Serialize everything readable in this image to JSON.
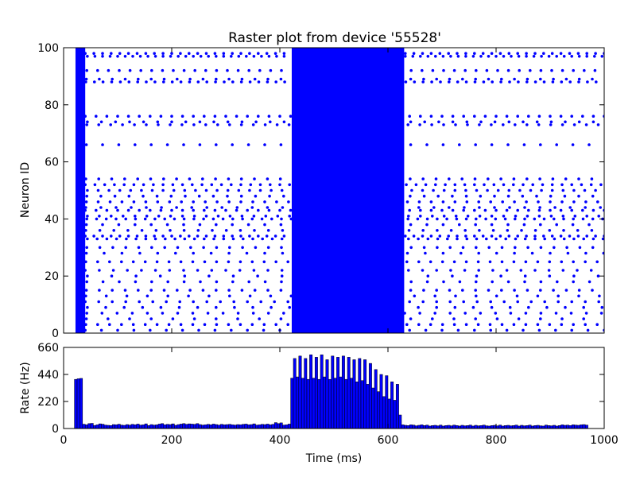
{
  "chart_data": [
    {
      "type": "scatter",
      "title": "Raster plot from device '55528'",
      "xlabel": "",
      "ylabel": "Neuron ID",
      "xlim": [
        0,
        1000
      ],
      "ylim": [
        0,
        100
      ],
      "yticks": [
        "0",
        "20",
        "40",
        "60",
        "80",
        "100"
      ],
      "marker_color": "#0000ff",
      "rows": [
        {
          "id": 1,
          "ms": 30
        },
        {
          "id": 3,
          "ms": 22
        },
        {
          "id": 5,
          "ms": 40
        },
        {
          "id": 7,
          "ms": 28
        },
        {
          "id": 9,
          "ms": 34
        },
        {
          "id": 11,
          "ms": 25
        },
        {
          "id": 13,
          "ms": 38
        },
        {
          "id": 15,
          "ms": 24
        },
        {
          "id": 18,
          "ms": 30
        },
        {
          "id": 20,
          "ms": 45
        },
        {
          "id": 22,
          "ms": 26
        },
        {
          "id": 25,
          "ms": 22
        },
        {
          "id": 28,
          "ms": 33
        },
        {
          "id": 30,
          "ms": 24
        },
        {
          "id": 33,
          "ms": 18
        },
        {
          "id": 34,
          "ms": 16
        },
        {
          "id": 36,
          "ms": 26
        },
        {
          "id": 38,
          "ms": 30
        },
        {
          "id": 40,
          "ms": 18
        },
        {
          "id": 41,
          "ms": 22
        },
        {
          "id": 43,
          "ms": 20
        },
        {
          "id": 44,
          "ms": 28
        },
        {
          "id": 46,
          "ms": 22
        },
        {
          "id": 48,
          "ms": 26
        },
        {
          "id": 50,
          "ms": 20
        },
        {
          "id": 52,
          "ms": 18
        },
        {
          "id": 54,
          "ms": 24
        },
        {
          "id": 66,
          "ms": 30
        },
        {
          "id": 73,
          "ms": 22
        },
        {
          "id": 74,
          "ms": 26
        },
        {
          "id": 76,
          "ms": 20
        },
        {
          "id": 88,
          "ms": 16
        },
        {
          "id": 89,
          "ms": 24
        },
        {
          "id": 92,
          "ms": 20
        },
        {
          "id": 97,
          "ms": 14
        },
        {
          "id": 98,
          "ms": 16
        }
      ],
      "bursts": [
        {
          "start": 22,
          "end": 40
        },
        {
          "start": 422,
          "end": 630
        }
      ]
    },
    {
      "type": "bar",
      "xlabel": "Time (ms)",
      "ylabel": "Rate (Hz)",
      "xlim": [
        0,
        1000
      ],
      "ylim": [
        0,
        660
      ],
      "xticks": [
        "0",
        "200",
        "400",
        "600",
        "800",
        "1000"
      ],
      "yticks": [
        "0",
        "220",
        "440",
        "660"
      ],
      "bin_width_ms": 5,
      "bar_color": "#0000ff",
      "bins_start": [
        20,
        25,
        30,
        35,
        40,
        45,
        50,
        55,
        60,
        65,
        70,
        75,
        80,
        85,
        90,
        95,
        100,
        105,
        110,
        115,
        120,
        125,
        130,
        135,
        140,
        145,
        150,
        155,
        160,
        165,
        170,
        175,
        180,
        185,
        190,
        195,
        200,
        205,
        210,
        215,
        220,
        225,
        230,
        235,
        240,
        245,
        250,
        255,
        260,
        265,
        270,
        275,
        280,
        285,
        290,
        295,
        300,
        305,
        310,
        315,
        320,
        325,
        330,
        335,
        340,
        345,
        350,
        355,
        360,
        365,
        370,
        375,
        380,
        385,
        390,
        395,
        400,
        405,
        410,
        415,
        420,
        425,
        430,
        435,
        440,
        445,
        450,
        455,
        460,
        465,
        470,
        475,
        480,
        485,
        490,
        495,
        500,
        505,
        510,
        515,
        520,
        525,
        530,
        535,
        540,
        545,
        550,
        555,
        560,
        565,
        570,
        575,
        580,
        585,
        590,
        595,
        600,
        605,
        610,
        615,
        620,
        625,
        630,
        635,
        640,
        645,
        650,
        655,
        660,
        665,
        670,
        675,
        680,
        685,
        690,
        695,
        700,
        705,
        710,
        715,
        720,
        725,
        730,
        735,
        740,
        745,
        750,
        755,
        760,
        765,
        770,
        775,
        780,
        785,
        790,
        795,
        800,
        805,
        810,
        815,
        820,
        825,
        830,
        835,
        840,
        845,
        850,
        855,
        860,
        865,
        870,
        875,
        880,
        885,
        890,
        895,
        900,
        905,
        910,
        915,
        920,
        925,
        930,
        935,
        940,
        945,
        950,
        955,
        960,
        965,
        970,
        975,
        980,
        985,
        990,
        995
      ],
      "values": [
        400,
        405,
        408,
        35,
        30,
        40,
        42,
        25,
        30,
        38,
        35,
        28,
        26,
        24,
        32,
        30,
        35,
        28,
        26,
        32,
        28,
        34,
        30,
        36,
        28,
        30,
        38,
        24,
        32,
        28,
        30,
        36,
        40,
        30,
        34,
        32,
        38,
        26,
        32,
        36,
        40,
        34,
        38,
        36,
        34,
        40,
        32,
        28,
        30,
        34,
        30,
        36,
        32,
        28,
        34,
        30,
        32,
        34,
        30,
        28,
        32,
        30,
        34,
        36,
        30,
        32,
        38,
        28,
        30,
        34,
        32,
        36,
        30,
        34,
        48,
        40,
        46,
        28,
        30,
        36,
        410,
        570,
        420,
        590,
        410,
        570,
        400,
        600,
        410,
        580,
        400,
        600,
        420,
        560,
        400,
        590,
        410,
        580,
        420,
        590,
        400,
        580,
        410,
        560,
        380,
        570,
        390,
        560,
        360,
        530,
        330,
        480,
        300,
        440,
        260,
        430,
        240,
        380,
        230,
        360,
        110,
        30,
        26,
        24,
        30,
        28,
        22,
        26,
        30,
        24,
        28,
        20,
        24,
        26,
        22,
        28,
        20,
        24,
        26,
        22,
        28,
        24,
        20,
        26,
        22,
        24,
        28,
        20,
        26,
        22,
        24,
        28,
        22,
        20,
        24,
        26,
        22,
        28,
        20,
        24,
        26,
        22,
        24,
        28,
        20,
        26,
        22,
        24,
        28,
        20,
        24,
        26,
        22,
        20,
        28,
        24,
        22,
        26,
        20,
        24,
        30,
        26,
        28,
        24,
        30,
        28,
        26,
        30,
        32,
        28
      ]
    }
  ]
}
